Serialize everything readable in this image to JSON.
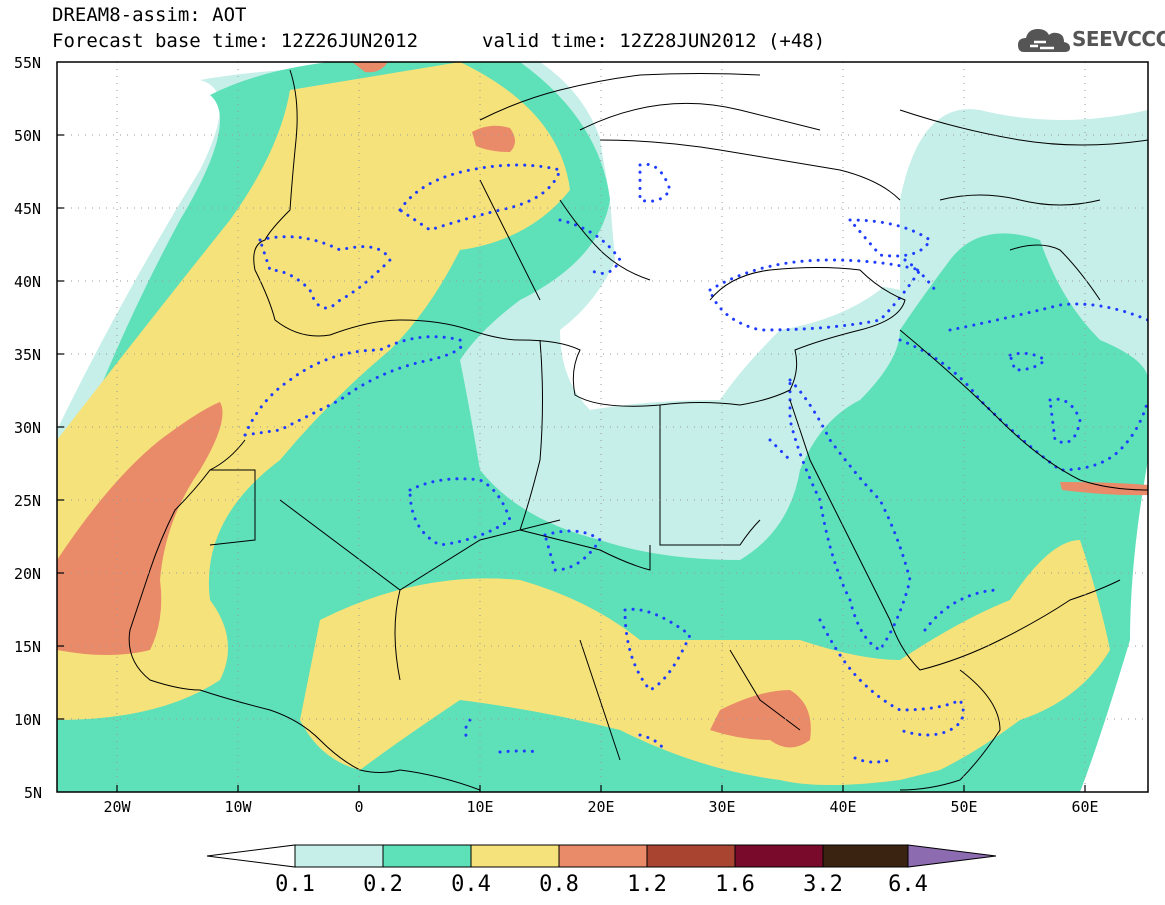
{
  "header": {
    "line1": "DREAM8-assim: AOT",
    "line2": "Forecast base time: 12Z26JUN2012",
    "line3": "valid time: 12Z28JUN2012 (+48)"
  },
  "logo": {
    "text": "SEEVCCC",
    "icon": "cloud-icon"
  },
  "lat_labels": [
    "55N",
    "50N",
    "45N",
    "40N",
    "35N",
    "30N",
    "25N",
    "20N",
    "15N",
    "10N",
    "5N"
  ],
  "lon_labels": [
    "20W",
    "10W",
    "0",
    "10E",
    "20E",
    "30E",
    "40E",
    "50E",
    "60E"
  ],
  "colorbar": {
    "labels": [
      "0.1",
      "0.2",
      "0.4",
      "0.8",
      "1.2",
      "1.6",
      "3.2",
      "6.4"
    ],
    "colors": [
      "#ffffff",
      "#c5efe8",
      "#5ee0b9",
      "#f6e27a",
      "#e98a69",
      "#a8442f",
      "#7a0a2c",
      "#3b2311",
      "#8d6bb1"
    ]
  },
  "map": {
    "colors": {
      "land_lines": "#000000",
      "dotted_contour": "#1f3dff",
      "class_0_1": "#c5efe8",
      "class_0_2": "#5ee0b9",
      "class_0_4": "#f6e27a",
      "class_0_8": "#e98a69"
    }
  }
}
